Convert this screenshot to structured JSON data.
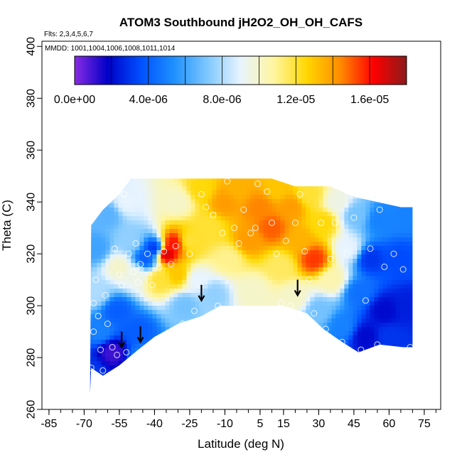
{
  "chart_data": {
    "type": "heatmap",
    "title": "ATOM3 Southbound jH2O2_OH_OH_CAFS",
    "subtitle": "Flts: 2,3,4,5,6,7",
    "annotation": "MMDD: 1001,1004,1006,1008,1011,1014",
    "xlabel": "Latitude (deg N)",
    "ylabel": "Theta (C)",
    "xlim": [
      -88,
      82
    ],
    "ylim": [
      260,
      402
    ],
    "x_ticks": [
      -85,
      -70,
      -55,
      -40,
      -25,
      -10,
      5,
      15,
      30,
      45,
      60,
      75
    ],
    "x_minor_step": 5,
    "y_ticks": [
      260,
      280,
      300,
      320,
      340,
      360,
      380,
      400
    ],
    "colorbar": {
      "min": 0,
      "max": 1.8e-05,
      "tick_values": [
        0,
        4e-06,
        8e-06,
        1.2e-05,
        1.6e-05
      ],
      "tick_labels": [
        "0.0e+00",
        "4.0e-06",
        "8.0e-06",
        "1.2e-05",
        "1.6e-05"
      ],
      "colors": [
        "#8a2be2",
        "#0000c8",
        "#0050ff",
        "#1e90ff",
        "#7fc8ff",
        "#e8f4ff",
        "#fff5a0",
        "#ffd700",
        "#ff8c00",
        "#ff0000",
        "#8b1a1a"
      ]
    },
    "field_boundary": [
      [
        -67.5,
        266
      ],
      [
        -67,
        276
      ],
      [
        -62,
        273
      ],
      [
        -55,
        277
      ],
      [
        -47,
        283
      ],
      [
        -40,
        288
      ],
      [
        -30,
        293
      ],
      [
        -20,
        296
      ],
      [
        -12,
        300
      ],
      [
        15,
        300
      ],
      [
        25,
        297
      ],
      [
        32,
        291
      ],
      [
        40,
        286
      ],
      [
        47,
        282
      ],
      [
        56,
        285
      ],
      [
        66,
        284
      ],
      [
        70,
        284
      ],
      [
        70,
        338
      ],
      [
        65,
        338
      ],
      [
        55,
        340
      ],
      [
        45,
        342
      ],
      [
        35,
        346
      ],
      [
        20,
        346
      ],
      [
        10,
        349
      ],
      [
        -10,
        349
      ],
      [
        -30,
        349
      ],
      [
        -50,
        349
      ],
      [
        -55,
        343
      ],
      [
        -62,
        337
      ],
      [
        -67,
        331
      ]
    ],
    "cells": [
      {
        "lat": -67,
        "theta": 275,
        "value": 3e-06
      },
      {
        "lat": -63,
        "theta": 290,
        "value": 5e-06
      },
      {
        "lat": -65,
        "theta": 305,
        "value": 8e-06
      },
      {
        "lat": -65,
        "theta": 322,
        "value": 6e-06
      },
      {
        "lat": -60,
        "theta": 335,
        "value": 6.5e-06
      },
      {
        "lat": -58,
        "theta": 282,
        "value": 1e-06
      },
      {
        "lat": -56,
        "theta": 298,
        "value": 4e-06
      },
      {
        "lat": -55,
        "theta": 315,
        "value": 1e-05
      },
      {
        "lat": -52,
        "theta": 340,
        "value": 9e-06
      },
      {
        "lat": -50,
        "theta": 325,
        "value": 7.5e-06
      },
      {
        "lat": -48,
        "theta": 312,
        "value": 9.5e-06
      },
      {
        "lat": -47,
        "theta": 290,
        "value": 4e-06
      },
      {
        "lat": -45,
        "theta": 280,
        "value": 5e-06
      },
      {
        "lat": -44,
        "theta": 318,
        "value": 4e-06
      },
      {
        "lat": -40,
        "theta": 322,
        "value": 3e-06
      },
      {
        "lat": -38,
        "theta": 310,
        "value": 1.2e-05
      },
      {
        "lat": -35,
        "theta": 320,
        "value": 1.7e-05
      },
      {
        "lat": -32,
        "theta": 324,
        "value": 1.6e-05
      },
      {
        "lat": -30,
        "theta": 312,
        "value": 1.3e-05
      },
      {
        "lat": -30,
        "theta": 340,
        "value": 1e-05
      },
      {
        "lat": -27,
        "theta": 300,
        "value": 7e-06
      },
      {
        "lat": -25,
        "theta": 325,
        "value": 1.2e-05
      },
      {
        "lat": -22,
        "theta": 310,
        "value": 9e-06
      },
      {
        "lat": -20,
        "theta": 345,
        "value": 1.25e-05
      },
      {
        "lat": -17,
        "theta": 330,
        "value": 1.2e-05
      },
      {
        "lat": -15,
        "theta": 304,
        "value": 7.5e-06
      },
      {
        "lat": -10,
        "theta": 340,
        "value": 1.4e-05
      },
      {
        "lat": -8,
        "theta": 318,
        "value": 1.1e-05
      },
      {
        "lat": -5,
        "theta": 345,
        "value": 1.35e-05
      },
      {
        "lat": 0,
        "theta": 325,
        "value": 1.4e-05
      },
      {
        "lat": 2,
        "theta": 305,
        "value": 1e-05
      },
      {
        "lat": 5,
        "theta": 338,
        "value": 1.45e-05
      },
      {
        "lat": 10,
        "theta": 330,
        "value": 1.5e-05
      },
      {
        "lat": 12,
        "theta": 345,
        "value": 1.3e-05
      },
      {
        "lat": 14,
        "theta": 315,
        "value": 1.15e-05
      },
      {
        "lat": 18,
        "theta": 338,
        "value": 1.4e-05
      },
      {
        "lat": 20,
        "theta": 303,
        "value": 1e-05
      },
      {
        "lat": 22,
        "theta": 325,
        "value": 1.35e-05
      },
      {
        "lat": 26,
        "theta": 343,
        "value": 1.2e-05
      },
      {
        "lat": 28,
        "theta": 318,
        "value": 1.55e-05
      },
      {
        "lat": 30,
        "theta": 298,
        "value": 7e-06
      },
      {
        "lat": 32,
        "theta": 332,
        "value": 1.25e-05
      },
      {
        "lat": 36,
        "theta": 310,
        "value": 1.05e-05
      },
      {
        "lat": 38,
        "theta": 340,
        "value": 9.5e-06
      },
      {
        "lat": 40,
        "theta": 292,
        "value": 5e-06
      },
      {
        "lat": 43,
        "theta": 322,
        "value": 9e-06
      },
      {
        "lat": 46,
        "theta": 335,
        "value": 7e-06
      },
      {
        "lat": 47,
        "theta": 305,
        "value": 4.5e-06
      },
      {
        "lat": 50,
        "theta": 288,
        "value": 2e-06
      },
      {
        "lat": 52,
        "theta": 318,
        "value": 3e-06
      },
      {
        "lat": 56,
        "theta": 333,
        "value": 5e-06
      },
      {
        "lat": 58,
        "theta": 298,
        "value": 2e-06
      },
      {
        "lat": 60,
        "theta": 288,
        "value": 3e-06
      },
      {
        "lat": 64,
        "theta": 318,
        "value": 3.5e-06
      },
      {
        "lat": 67,
        "theta": 335,
        "value": 5e-06
      },
      {
        "lat": 68,
        "theta": 300,
        "value": 2.5e-06
      }
    ],
    "observations": [
      {
        "lat": -67,
        "theta": 276
      },
      {
        "lat": -66,
        "theta": 290
      },
      {
        "lat": -66,
        "theta": 301
      },
      {
        "lat": -65,
        "theta": 310
      },
      {
        "lat": -64,
        "theta": 296
      },
      {
        "lat": -63,
        "theta": 283
      },
      {
        "lat": -62,
        "theta": 275
      },
      {
        "lat": -61,
        "theta": 304
      },
      {
        "lat": -60,
        "theta": 293
      },
      {
        "lat": -58,
        "theta": 284
      },
      {
        "lat": -57,
        "theta": 322
      },
      {
        "lat": -56,
        "theta": 281
      },
      {
        "lat": -55,
        "theta": 312
      },
      {
        "lat": -54,
        "theta": 308
      },
      {
        "lat": -53,
        "theta": 343
      },
      {
        "lat": -52,
        "theta": 282
      },
      {
        "lat": -51,
        "theta": 320
      },
      {
        "lat": -50,
        "theta": 279
      },
      {
        "lat": -49,
        "theta": 313
      },
      {
        "lat": -48,
        "theta": 324
      },
      {
        "lat": -47,
        "theta": 309
      },
      {
        "lat": -46,
        "theta": 316
      },
      {
        "lat": -44,
        "theta": 282
      },
      {
        "lat": -43,
        "theta": 320
      },
      {
        "lat": -41,
        "theta": 308
      },
      {
        "lat": -38,
        "theta": 315
      },
      {
        "lat": -36,
        "theta": 321
      },
      {
        "lat": -33,
        "theta": 316
      },
      {
        "lat": -31,
        "theta": 323
      },
      {
        "lat": -28,
        "theta": 293
      },
      {
        "lat": -25,
        "theta": 320
      },
      {
        "lat": -23,
        "theta": 298
      },
      {
        "lat": -20,
        "theta": 343
      },
      {
        "lat": -18,
        "theta": 338
      },
      {
        "lat": -15,
        "theta": 335
      },
      {
        "lat": -13,
        "theta": 300
      },
      {
        "lat": -11,
        "theta": 328
      },
      {
        "lat": -9,
        "theta": 348
      },
      {
        "lat": -6,
        "theta": 330
      },
      {
        "lat": -4,
        "theta": 324
      },
      {
        "lat": -2,
        "theta": 337
      },
      {
        "lat": 1,
        "theta": 328
      },
      {
        "lat": 3,
        "theta": 330
      },
      {
        "lat": 4,
        "theta": 347
      },
      {
        "lat": 8,
        "theta": 344
      },
      {
        "lat": 10,
        "theta": 332
      },
      {
        "lat": 12,
        "theta": 320
      },
      {
        "lat": 14,
        "theta": 301
      },
      {
        "lat": 16,
        "theta": 325
      },
      {
        "lat": 18,
        "theta": 300
      },
      {
        "lat": 20,
        "theta": 332
      },
      {
        "lat": 22,
        "theta": 343
      },
      {
        "lat": 24,
        "theta": 321
      },
      {
        "lat": 26,
        "theta": 310
      },
      {
        "lat": 28,
        "theta": 297
      },
      {
        "lat": 31,
        "theta": 332
      },
      {
        "lat": 33,
        "theta": 291
      },
      {
        "lat": 35,
        "theta": 318
      },
      {
        "lat": 37,
        "theta": 332
      },
      {
        "lat": 40,
        "theta": 286
      },
      {
        "lat": 42,
        "theta": 320
      },
      {
        "lat": 45,
        "theta": 334
      },
      {
        "lat": 48,
        "theta": 283
      },
      {
        "lat": 50,
        "theta": 302
      },
      {
        "lat": 52,
        "theta": 322
      },
      {
        "lat": 55,
        "theta": 285
      },
      {
        "lat": 56,
        "theta": 337
      },
      {
        "lat": 58,
        "theta": 315
      },
      {
        "lat": 62,
        "theta": 320
      },
      {
        "lat": 66,
        "theta": 314
      },
      {
        "lat": 69,
        "theta": 284
      }
    ],
    "arrows": [
      {
        "lat": -54,
        "theta": 284
      },
      {
        "lat": -46,
        "theta": 286
      },
      {
        "lat": -20,
        "theta": 302
      },
      {
        "lat": 21,
        "theta": 304
      }
    ]
  }
}
